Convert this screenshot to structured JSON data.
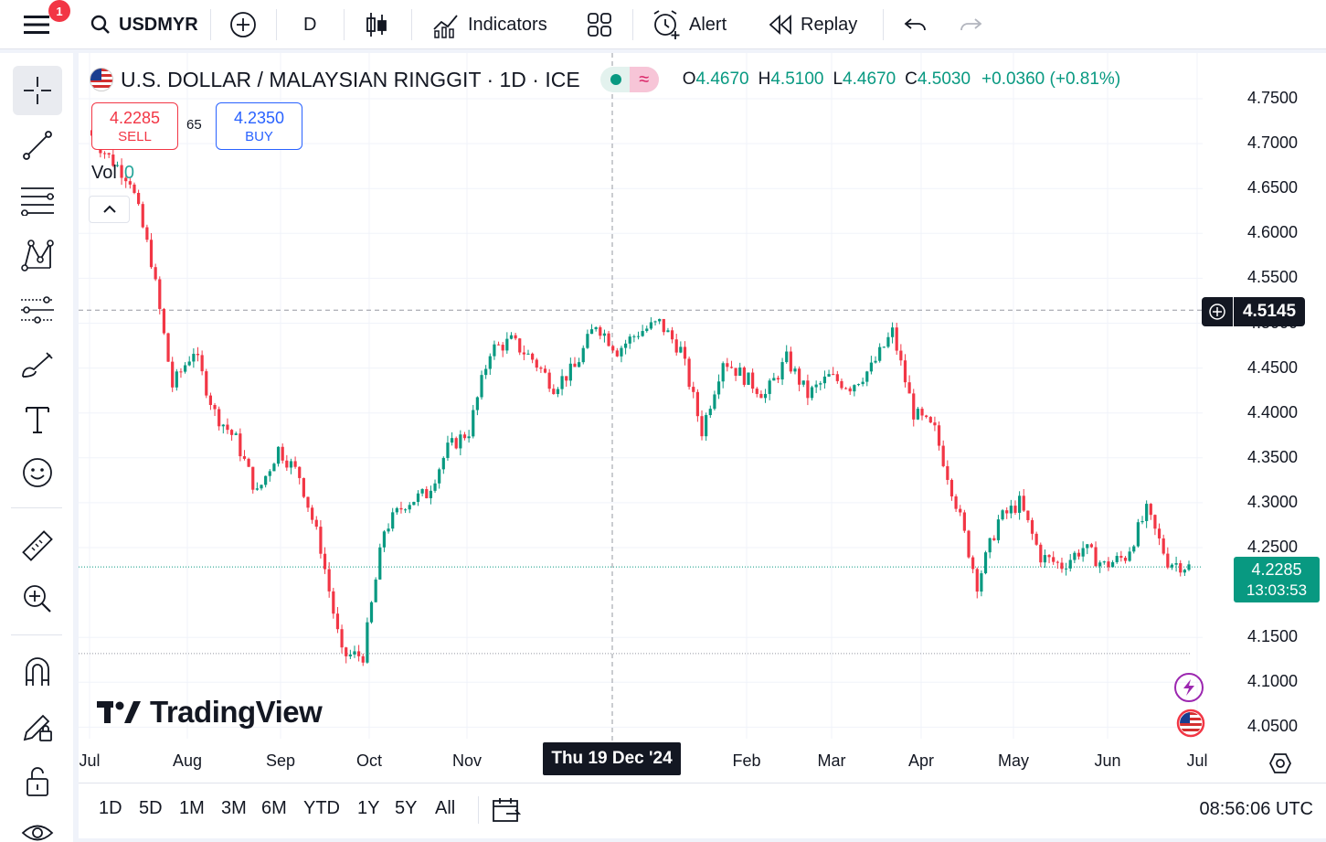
{
  "toolbar": {
    "notification_count": "1",
    "symbol": "USDMYR",
    "interval": "D",
    "indicators_label": "Indicators",
    "alert_label": "Alert",
    "replay_label": "Replay"
  },
  "legend": {
    "title": "U.S. DOLLAR / MALAYSIAN RINGGIT · 1D · ICE",
    "o_key": "O",
    "o_val": "4.4670",
    "h_key": "H",
    "h_val": "4.5100",
    "l_key": "L",
    "l_val": "4.4670",
    "c_key": "C",
    "c_val": "4.5030",
    "change": "+0.0360 (+0.81%)",
    "status_wave": "≈"
  },
  "trade": {
    "sell_price": "4.2285",
    "sell_label": "SELL",
    "spread": "65",
    "buy_price": "4.2350",
    "buy_label": "BUY"
  },
  "volume": {
    "label": "Vol",
    "value": "0"
  },
  "watermark": "TradingView",
  "price_axis": {
    "labels": [
      "4.7500",
      "4.7000",
      "4.6500",
      "4.6000",
      "4.5500",
      "4.5000",
      "4.4500",
      "4.4000",
      "4.3500",
      "4.3000",
      "4.2500",
      "4.1500",
      "4.1000",
      "4.0500"
    ],
    "crosshair_price": "4.5145",
    "last_price": "4.2285",
    "countdown": "13:03:53"
  },
  "time_axis": {
    "labels": [
      "Jul",
      "Aug",
      "Sep",
      "Oct",
      "Nov",
      "Feb",
      "Mar",
      "Apr",
      "May",
      "Jun",
      "Jul"
    ],
    "crosshair_date": "Thu 19 Dec '24"
  },
  "bottom": {
    "ranges": [
      "1D",
      "5D",
      "1M",
      "3M",
      "6M",
      "YTD",
      "1Y",
      "5Y",
      "All"
    ],
    "clock": "08:56:06 UTC"
  },
  "colors": {
    "up": "#089981",
    "down": "#f23645",
    "accent": "#2962ff"
  },
  "icons": [
    "menu-icon",
    "search-icon",
    "add-symbol-icon",
    "candles-icon",
    "indicators-icon",
    "templates-icon",
    "alert-icon",
    "replay-icon",
    "undo-icon",
    "redo-icon"
  ],
  "chart_data": {
    "type": "candlestick",
    "symbol": "USDMYR",
    "interval": "1D",
    "ylim": [
      4.03,
      4.78
    ],
    "close_path": [
      {
        "x": "Jul 1",
        "y": 4.715
      },
      {
        "x": "Jul 15",
        "y": 4.685
      },
      {
        "x": "Jul 25",
        "y": 4.66
      },
      {
        "x": "Aug 1",
        "y": 4.57
      },
      {
        "x": "Aug 5",
        "y": 4.43
      },
      {
        "x": "Aug 10",
        "y": 4.47
      },
      {
        "x": "Aug 20",
        "y": 4.4
      },
      {
        "x": "Aug 28",
        "y": 4.37
      },
      {
        "x": "Sep 5",
        "y": 4.31
      },
      {
        "x": "Sep 10",
        "y": 4.36
      },
      {
        "x": "Sep 16",
        "y": 4.33
      },
      {
        "x": "Sep 20",
        "y": 4.25
      },
      {
        "x": "Sep 26",
        "y": 4.13
      },
      {
        "x": "Oct 1",
        "y": 4.13
      },
      {
        "x": "Oct 7",
        "y": 4.27
      },
      {
        "x": "Oct 15",
        "y": 4.3
      },
      {
        "x": "Oct 22",
        "y": 4.31
      },
      {
        "x": "Oct 28",
        "y": 4.36
      },
      {
        "x": "Nov 4",
        "y": 4.38
      },
      {
        "x": "Nov 12",
        "y": 4.47
      },
      {
        "x": "Nov 18",
        "y": 4.48
      },
      {
        "x": "Nov 25",
        "y": 4.46
      },
      {
        "x": "Dec 2",
        "y": 4.43
      },
      {
        "x": "Dec 10",
        "y": 4.45
      },
      {
        "x": "Dec 19",
        "y": 4.5
      },
      {
        "x": "Dec 26",
        "y": 4.47
      },
      {
        "x": "Jan 2",
        "y": 4.49
      },
      {
        "x": "Jan 10",
        "y": 4.5
      },
      {
        "x": "Jan 17",
        "y": 4.47
      },
      {
        "x": "Jan 24",
        "y": 4.38
      },
      {
        "x": "Jan 31",
        "y": 4.46
      },
      {
        "x": "Feb 7",
        "y": 4.44
      },
      {
        "x": "Feb 14",
        "y": 4.42
      },
      {
        "x": "Feb 21",
        "y": 4.46
      },
      {
        "x": "Mar 1",
        "y": 4.42
      },
      {
        "x": "Mar 10",
        "y": 4.44
      },
      {
        "x": "Mar 20",
        "y": 4.43
      },
      {
        "x": "Apr 1",
        "y": 4.45
      },
      {
        "x": "Apr 8",
        "y": 4.49
      },
      {
        "x": "Apr 14",
        "y": 4.4
      },
      {
        "x": "Apr 22",
        "y": 4.38
      },
      {
        "x": "Apr 28",
        "y": 4.3
      },
      {
        "x": "May 2",
        "y": 4.21
      },
      {
        "x": "May 8",
        "y": 4.28
      },
      {
        "x": "May 15",
        "y": 4.3
      },
      {
        "x": "May 22",
        "y": 4.24
      },
      {
        "x": "May 28",
        "y": 4.23
      },
      {
        "x": "Jun 4",
        "y": 4.25
      },
      {
        "x": "Jun 12",
        "y": 4.23
      },
      {
        "x": "Jun 19",
        "y": 4.24
      },
      {
        "x": "Jun 23",
        "y": 4.29
      },
      {
        "x": "Jun 26",
        "y": 4.235
      },
      {
        "x": "Jun 30",
        "y": 4.2285
      }
    ],
    "reference_lines": {
      "crosshair_price": 4.5145,
      "last_price": 4.2285
    }
  }
}
